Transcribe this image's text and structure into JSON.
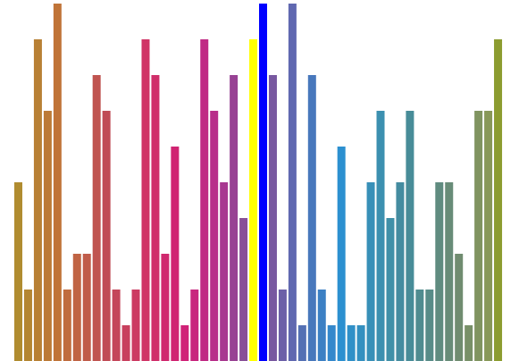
{
  "chart_data": {
    "type": "bar",
    "title": "",
    "xlabel": "",
    "ylabel": "",
    "grid": false,
    "legend": "none",
    "ylim": [
      0,
      10
    ],
    "values": [
      5,
      2,
      9,
      7,
      10,
      2,
      3,
      3,
      8,
      7,
      2,
      1,
      2,
      9,
      8,
      3,
      6,
      1,
      2,
      9,
      7,
      5,
      8,
      4,
      9,
      10,
      8,
      2,
      10,
      1,
      8,
      2,
      1,
      6,
      1,
      1,
      5,
      7,
      4,
      5,
      7,
      2,
      2,
      5,
      5,
      3,
      1,
      7,
      7,
      9
    ],
    "colors": [
      "#b08c30",
      "#b48632",
      "#b88034",
      "#bc7a36",
      "#c07438",
      "#c06c3e",
      "#c06444",
      "#c05c4a",
      "#c05450",
      "#c04c56",
      "#c4465a",
      "#c8405e",
      "#cc3a62",
      "#d03466",
      "#d02e6a",
      "#d0286e",
      "#d02472",
      "#d02278",
      "#c8267e",
      "#c02a84",
      "#b82e8a",
      "#a83890",
      "#984294",
      "#885098",
      "#ffff00",
      "#0000ff",
      "#7858a0",
      "#6c60a8",
      "#6068b0",
      "#5470b4",
      "#4878bc",
      "#3c80c4",
      "#3488cc",
      "#2c90d0",
      "#3090c8",
      "#3490c0",
      "#3890b8",
      "#3c90b0",
      "#4090a8",
      "#448ca0",
      "#488c98",
      "#508c90",
      "#588c88",
      "#608c80",
      "#688c78",
      "#708c70",
      "#789068",
      "#809460",
      "#889858",
      "#8c9c30"
    ]
  }
}
